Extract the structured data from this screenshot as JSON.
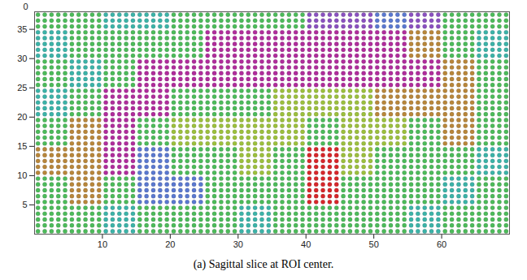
{
  "chart_data": {
    "type": "scatter",
    "caption": "(a) Sagittal slice at ROI center.",
    "xlim": [
      0,
      70
    ],
    "xticks": [
      10,
      20,
      30,
      40,
      50,
      60
    ],
    "ylim": [
      0,
      38
    ],
    "yticks": [
      5,
      10,
      15,
      20,
      25,
      30,
      35
    ],
    "zticks": [
      0
    ],
    "marker": "circle",
    "cells": {
      "x_edges": [
        0,
        5,
        10,
        15,
        20,
        25,
        30,
        35,
        40,
        45,
        50,
        55,
        60,
        65,
        70
      ],
      "y_edges": [
        0,
        5,
        10,
        15,
        20,
        25,
        30,
        35,
        38
      ],
      "colors": [
        [
          "#4cbb5a",
          "#4cbb5a",
          "#3bb3a8",
          "#4cbb5a",
          "#4cbb5a",
          "#4cbb5a",
          "#3bb3a8",
          "#4cbb5a",
          "#4cbb5a",
          "#4cbb5a",
          "#4cbb5a",
          "#3bb3a8",
          "#4cbb5a",
          "#4cbb5a"
        ],
        [
          "#4cbb5a",
          "#b8863a",
          "#4cbb5a",
          "#5a78d0",
          "#5a78d0",
          "#4cbb5a",
          "#4cbb5a",
          "#4cbb5a",
          "#d8262a",
          "#4cbb5a",
          "#4cbb5a",
          "#4cbb5a",
          "#3bb3a8",
          "#4cbb5a"
        ],
        [
          "#b8863a",
          "#b8863a",
          "#b02c9c",
          "#5a78d0",
          "#4cbb5a",
          "#4cbb5a",
          "#9cc03c",
          "#4cbb5a",
          "#d8262a",
          "#9cc03c",
          "#4cbb5a",
          "#4cbb5a",
          "#4cbb5a",
          "#3bb3a8"
        ],
        [
          "#4cbb5a",
          "#b8863a",
          "#b02c9c",
          "#4cbb5a",
          "#9cc03c",
          "#9cc03c",
          "#9cc03c",
          "#9cc03c",
          "#4cbb5a",
          "#9cc03c",
          "#9cc03c",
          "#4cbb5a",
          "#b8863a",
          "#4cbb5a"
        ],
        [
          "#3bb3a8",
          "#4cbb5a",
          "#b02c9c",
          "#b02c9c",
          "#4cbb5a",
          "#4cbb5a",
          "#4cbb5a",
          "#9cc03c",
          "#9cc03c",
          "#9cc03c",
          "#b8863a",
          "#b8863a",
          "#b8863a",
          "#4cbb5a"
        ],
        [
          "#4cbb5a",
          "#3bb3a8",
          "#4cbb5a",
          "#b02c9c",
          "#b02c9c",
          "#b02c9c",
          "#b02c9c",
          "#b02c9c",
          "#b02c9c",
          "#b02c9c",
          "#b02c9c",
          "#b02c9c",
          "#b8863a",
          "#4cbb5a"
        ],
        [
          "#3bb3a8",
          "#4cbb5a",
          "#4cbb5a",
          "#4cbb5a",
          "#4cbb5a",
          "#b02c9c",
          "#b02c9c",
          "#b02c9c",
          "#b02c9c",
          "#b02c9c",
          "#b02c9c",
          "#b8863a",
          "#4cbb5a",
          "#3bb3a8"
        ],
        [
          "#4cbb5a",
          "#4cbb5a",
          "#3bb3a8",
          "#3bb3a8",
          "#4cbb5a",
          "#4cbb5a",
          "#4cbb5a",
          "#4cbb5a",
          "#8a50c0",
          "#8a50c0",
          "#5a78d0",
          "#8a50c0",
          "#4cbb5a",
          "#4cbb5a"
        ]
      ]
    }
  }
}
